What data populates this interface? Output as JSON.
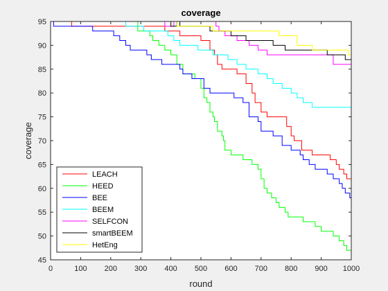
{
  "chart_data": {
    "type": "line",
    "title": "coverage",
    "xlabel": "round",
    "ylabel": "coverage",
    "xlim": [
      0,
      1000
    ],
    "ylim": [
      45,
      95
    ],
    "xticks": [
      0,
      100,
      200,
      300,
      400,
      500,
      600,
      700,
      800,
      900,
      1000
    ],
    "yticks": [
      45,
      50,
      55,
      60,
      65,
      70,
      75,
      80,
      85,
      90,
      95
    ],
    "grid": false,
    "legend_position": "bottom-left",
    "series": [
      {
        "name": "LEACH",
        "color": "#ff0000",
        "points": [
          [
            0,
            95
          ],
          [
            70,
            95
          ],
          [
            70,
            94
          ],
          [
            380,
            94
          ],
          [
            380,
            93
          ],
          [
            430,
            93
          ],
          [
            430,
            92
          ],
          [
            500,
            92
          ],
          [
            500,
            91
          ],
          [
            530,
            91
          ],
          [
            530,
            89
          ],
          [
            545,
            89
          ],
          [
            545,
            88
          ],
          [
            555,
            88
          ],
          [
            555,
            86
          ],
          [
            570,
            86
          ],
          [
            570,
            85
          ],
          [
            620,
            85
          ],
          [
            620,
            84
          ],
          [
            650,
            84
          ],
          [
            650,
            82
          ],
          [
            670,
            82
          ],
          [
            670,
            80
          ],
          [
            680,
            80
          ],
          [
            680,
            78
          ],
          [
            700,
            78
          ],
          [
            700,
            76
          ],
          [
            720,
            76
          ],
          [
            720,
            75
          ],
          [
            785,
            75
          ],
          [
            785,
            73
          ],
          [
            800,
            73
          ],
          [
            800,
            71
          ],
          [
            810,
            71
          ],
          [
            810,
            70
          ],
          [
            835,
            70
          ],
          [
            835,
            68
          ],
          [
            870,
            68
          ],
          [
            870,
            67
          ],
          [
            930,
            67
          ],
          [
            930,
            66
          ],
          [
            950,
            66
          ],
          [
            950,
            65
          ],
          [
            960,
            65
          ],
          [
            960,
            64
          ],
          [
            975,
            64
          ],
          [
            975,
            63
          ],
          [
            985,
            63
          ],
          [
            985,
            62
          ],
          [
            1000,
            62
          ]
        ]
      },
      {
        "name": "HEED",
        "color": "#00ff00",
        "points": [
          [
            0,
            95
          ],
          [
            290,
            95
          ],
          [
            290,
            93
          ],
          [
            330,
            93
          ],
          [
            330,
            92
          ],
          [
            340,
            92
          ],
          [
            340,
            91
          ],
          [
            360,
            91
          ],
          [
            360,
            90
          ],
          [
            380,
            90
          ],
          [
            380,
            89
          ],
          [
            400,
            89
          ],
          [
            400,
            88
          ],
          [
            420,
            88
          ],
          [
            420,
            86
          ],
          [
            440,
            86
          ],
          [
            440,
            84
          ],
          [
            480,
            84
          ],
          [
            480,
            83
          ],
          [
            500,
            83
          ],
          [
            500,
            81
          ],
          [
            510,
            81
          ],
          [
            510,
            79
          ],
          [
            520,
            79
          ],
          [
            520,
            78
          ],
          [
            530,
            78
          ],
          [
            530,
            76
          ],
          [
            540,
            76
          ],
          [
            540,
            75
          ],
          [
            545,
            75
          ],
          [
            545,
            74
          ],
          [
            555,
            74
          ],
          [
            555,
            72
          ],
          [
            570,
            72
          ],
          [
            570,
            71
          ],
          [
            575,
            71
          ],
          [
            575,
            70
          ],
          [
            580,
            70
          ],
          [
            580,
            68
          ],
          [
            600,
            68
          ],
          [
            600,
            67
          ],
          [
            640,
            67
          ],
          [
            640,
            66
          ],
          [
            670,
            66
          ],
          [
            670,
            65
          ],
          [
            690,
            65
          ],
          [
            690,
            64
          ],
          [
            700,
            64
          ],
          [
            700,
            62
          ],
          [
            710,
            62
          ],
          [
            710,
            60
          ],
          [
            720,
            60
          ],
          [
            720,
            59
          ],
          [
            735,
            59
          ],
          [
            735,
            58
          ],
          [
            750,
            58
          ],
          [
            750,
            57
          ],
          [
            760,
            57
          ],
          [
            760,
            56
          ],
          [
            780,
            56
          ],
          [
            780,
            55
          ],
          [
            790,
            55
          ],
          [
            790,
            54
          ],
          [
            840,
            54
          ],
          [
            840,
            53
          ],
          [
            880,
            53
          ],
          [
            880,
            52
          ],
          [
            900,
            52
          ],
          [
            900,
            51
          ],
          [
            940,
            51
          ],
          [
            940,
            50
          ],
          [
            960,
            50
          ],
          [
            960,
            49
          ],
          [
            975,
            49
          ],
          [
            975,
            48
          ],
          [
            985,
            48
          ],
          [
            985,
            47
          ],
          [
            1000,
            47
          ]
        ]
      },
      {
        "name": "BEE",
        "color": "#0000ff",
        "points": [
          [
            0,
            95
          ],
          [
            10,
            95
          ],
          [
            10,
            94
          ],
          [
            140,
            94
          ],
          [
            140,
            93
          ],
          [
            210,
            93
          ],
          [
            210,
            92
          ],
          [
            230,
            92
          ],
          [
            230,
            91
          ],
          [
            250,
            91
          ],
          [
            250,
            90
          ],
          [
            265,
            90
          ],
          [
            265,
            89
          ],
          [
            320,
            89
          ],
          [
            320,
            88
          ],
          [
            335,
            88
          ],
          [
            335,
            87
          ],
          [
            370,
            87
          ],
          [
            370,
            86
          ],
          [
            430,
            86
          ],
          [
            430,
            85
          ],
          [
            440,
            85
          ],
          [
            440,
            84
          ],
          [
            470,
            84
          ],
          [
            470,
            83
          ],
          [
            510,
            83
          ],
          [
            510,
            81
          ],
          [
            530,
            81
          ],
          [
            530,
            80
          ],
          [
            610,
            80
          ],
          [
            610,
            79
          ],
          [
            640,
            79
          ],
          [
            640,
            78
          ],
          [
            660,
            78
          ],
          [
            660,
            75
          ],
          [
            690,
            75
          ],
          [
            690,
            74
          ],
          [
            700,
            74
          ],
          [
            700,
            72
          ],
          [
            740,
            72
          ],
          [
            740,
            71
          ],
          [
            770,
            71
          ],
          [
            770,
            69
          ],
          [
            800,
            69
          ],
          [
            800,
            68
          ],
          [
            830,
            68
          ],
          [
            830,
            67
          ],
          [
            840,
            67
          ],
          [
            840,
            66
          ],
          [
            860,
            66
          ],
          [
            860,
            65
          ],
          [
            880,
            65
          ],
          [
            880,
            64
          ],
          [
            920,
            64
          ],
          [
            920,
            63
          ],
          [
            940,
            63
          ],
          [
            940,
            62
          ],
          [
            960,
            62
          ],
          [
            960,
            61
          ],
          [
            970,
            61
          ],
          [
            970,
            60
          ],
          [
            980,
            60
          ],
          [
            980,
            59
          ],
          [
            995,
            59
          ],
          [
            995,
            58
          ],
          [
            1000,
            58
          ]
        ]
      },
      {
        "name": "BEEM",
        "color": "#00ffff",
        "points": [
          [
            0,
            95
          ],
          [
            250,
            95
          ],
          [
            250,
            94
          ],
          [
            310,
            94
          ],
          [
            310,
            93
          ],
          [
            390,
            93
          ],
          [
            390,
            92
          ],
          [
            410,
            92
          ],
          [
            410,
            91
          ],
          [
            430,
            91
          ],
          [
            430,
            90
          ],
          [
            490,
            90
          ],
          [
            490,
            89
          ],
          [
            540,
            89
          ],
          [
            540,
            88
          ],
          [
            590,
            88
          ],
          [
            590,
            87
          ],
          [
            620,
            87
          ],
          [
            620,
            86
          ],
          [
            650,
            86
          ],
          [
            650,
            85
          ],
          [
            690,
            85
          ],
          [
            690,
            84
          ],
          [
            720,
            84
          ],
          [
            720,
            83
          ],
          [
            740,
            83
          ],
          [
            740,
            82
          ],
          [
            770,
            82
          ],
          [
            770,
            81
          ],
          [
            800,
            81
          ],
          [
            800,
            80
          ],
          [
            820,
            80
          ],
          [
            820,
            79
          ],
          [
            840,
            79
          ],
          [
            840,
            78
          ],
          [
            870,
            78
          ],
          [
            870,
            77
          ],
          [
            1000,
            77
          ]
        ]
      },
      {
        "name": "SELFCON",
        "color": "#ff00ff",
        "points": [
          [
            0,
            95
          ],
          [
            380,
            95
          ],
          [
            380,
            94
          ],
          [
            410,
            94
          ],
          [
            410,
            95
          ],
          [
            550,
            95
          ],
          [
            550,
            94
          ],
          [
            560,
            94
          ],
          [
            560,
            93
          ],
          [
            580,
            93
          ],
          [
            580,
            92
          ],
          [
            620,
            92
          ],
          [
            620,
            91
          ],
          [
            660,
            91
          ],
          [
            660,
            90
          ],
          [
            690,
            90
          ],
          [
            690,
            89
          ],
          [
            720,
            89
          ],
          [
            720,
            88
          ],
          [
            940,
            88
          ],
          [
            940,
            86
          ],
          [
            1000,
            86
          ]
        ]
      },
      {
        "name": "smartBEEM",
        "color": "#000000",
        "points": [
          [
            0,
            95
          ],
          [
            400,
            95
          ],
          [
            400,
            94
          ],
          [
            420,
            94
          ],
          [
            420,
            95
          ],
          [
            430,
            95
          ],
          [
            430,
            94
          ],
          [
            530,
            94
          ],
          [
            530,
            93
          ],
          [
            600,
            93
          ],
          [
            600,
            92
          ],
          [
            650,
            92
          ],
          [
            650,
            91
          ],
          [
            740,
            91
          ],
          [
            740,
            90
          ],
          [
            780,
            90
          ],
          [
            780,
            89
          ],
          [
            920,
            89
          ],
          [
            920,
            88
          ],
          [
            980,
            88
          ],
          [
            980,
            87
          ],
          [
            1000,
            87
          ]
        ]
      },
      {
        "name": "HetEng",
        "color": "#ffff00",
        "points": [
          [
            0,
            95
          ],
          [
            420,
            95
          ],
          [
            420,
            94
          ],
          [
            540,
            94
          ],
          [
            540,
            93
          ],
          [
            760,
            93
          ],
          [
            760,
            92
          ],
          [
            820,
            92
          ],
          [
            820,
            90
          ],
          [
            870,
            90
          ],
          [
            870,
            89
          ],
          [
            990,
            89
          ],
          [
            990,
            88
          ],
          [
            1000,
            88
          ]
        ]
      }
    ]
  }
}
